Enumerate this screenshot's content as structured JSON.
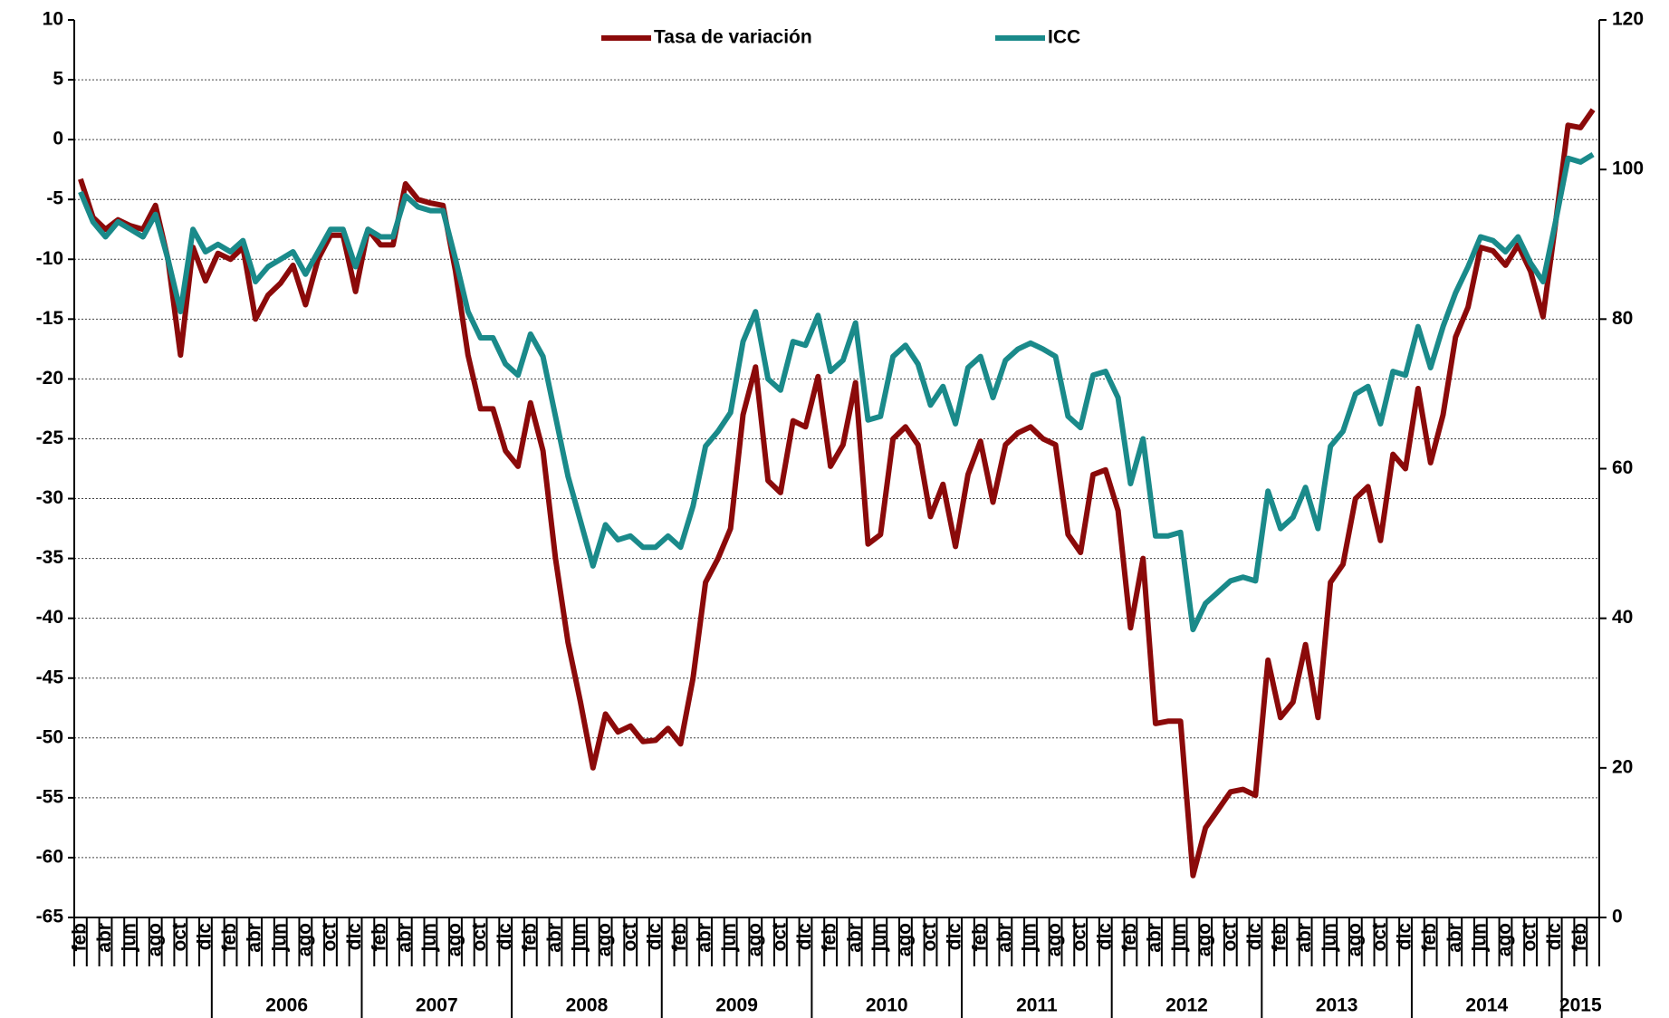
{
  "chart_data": {
    "type": "line",
    "categories": [
      "feb",
      null,
      "abr",
      null,
      "jun",
      null,
      "ago",
      null,
      "oct",
      null,
      "dic",
      null,
      "feb",
      null,
      "abr",
      null,
      "jun",
      null,
      "ago",
      null,
      "oct",
      null,
      "dic",
      null,
      "feb",
      null,
      "abr",
      null,
      "jun",
      null,
      "ago",
      null,
      "oct",
      null,
      "dic",
      null,
      "feb",
      null,
      "abr",
      null,
      "jun",
      null,
      "ago",
      null,
      "oct",
      null,
      "dic",
      null,
      "feb",
      null,
      "abr",
      null,
      "jun",
      null,
      "ago",
      null,
      "oct",
      null,
      "dic",
      null,
      "feb",
      null,
      "abr",
      null,
      "jun",
      null,
      "ago",
      null,
      "oct",
      null,
      "dic",
      null,
      "feb",
      null,
      "abr",
      null,
      "jun",
      null,
      "ago",
      null,
      "oct",
      null,
      "dic",
      null,
      "feb",
      null,
      "abr",
      null,
      "jun",
      null,
      "ago",
      null,
      "oct",
      null,
      "dic",
      null,
      "feb",
      null,
      "abr",
      null,
      "jun",
      null,
      "ago",
      null,
      "oct",
      null,
      "dic",
      null,
      "feb",
      null,
      "abr",
      null,
      "jun",
      null,
      "ago",
      null,
      "oct",
      null,
      "dic",
      null,
      "feb",
      null
    ],
    "years": [
      null,
      "2006",
      "2007",
      "2008",
      "2009",
      "2010",
      "2011",
      "2012",
      "2013",
      "2014",
      "2015"
    ],
    "series": [
      {
        "name": "Tasa de variación",
        "color": "#8b0a0a",
        "values": [
          -3.3,
          -6.5,
          -7.5,
          -6.7,
          -7.2,
          -7.5,
          -5.5,
          -10,
          -18,
          -9,
          -11.8,
          -9.5,
          -10,
          -9,
          -15,
          -13,
          -12,
          -10.5,
          -13.8,
          -10,
          -8,
          -8,
          -12.7,
          -7.5,
          -8.8,
          -8.8,
          -3.7,
          -5,
          -5.3,
          -5.5,
          -11,
          -18,
          -22.5,
          -22.5,
          -26,
          -27.3,
          -22,
          -26,
          -35,
          -42,
          -47,
          -52.5,
          -48,
          -49.5,
          -49,
          -50.3,
          -50.2,
          -49.2,
          -50.5,
          -45,
          -37,
          -35,
          -32.5,
          -23,
          -19,
          -28.5,
          -29.5,
          -23.5,
          -24,
          -19.8,
          -27.3,
          -25.5,
          -20.3,
          -33.8,
          -33,
          -25,
          -24,
          -25.5,
          -31.5,
          -28.8,
          -34,
          -28,
          -25.2,
          -30.3,
          -25.5,
          -24.5,
          -24,
          -25,
          -25.5,
          -33,
          -34.5,
          -28,
          -27.6,
          -31,
          -40.8,
          -35,
          -48.8,
          -48.6,
          -48.6,
          -61.5,
          -57.5,
          -56,
          -54.5,
          -54.3,
          -54.8,
          -43.5,
          -48.3,
          -47,
          -42.2,
          -48.3,
          -37,
          -35.5,
          -30,
          -29,
          -33.5,
          -26.3,
          -27.5,
          -20.8,
          -27,
          -23,
          -16.5,
          -14,
          -9,
          -9.3,
          -10.5,
          -8.8,
          -11,
          -14.8,
          -7,
          1.2,
          1,
          2.5
        ]
      },
      {
        "name": "ICC",
        "color": "#1a8a8a",
        "axis": "y2",
        "values": [
          97,
          93,
          91,
          93,
          92,
          91,
          94,
          88,
          81,
          92,
          89,
          90,
          89,
          90.5,
          85,
          87,
          88,
          89,
          86,
          89,
          92,
          92,
          87,
          92,
          91,
          91,
          96.5,
          95,
          94.5,
          94.5,
          88,
          81,
          77.5,
          77.5,
          74,
          72.5,
          78,
          75,
          67,
          59,
          53,
          47,
          52.5,
          50.5,
          51,
          49.5,
          49.5,
          51,
          49.5,
          55,
          63,
          65,
          67.5,
          77,
          81,
          72,
          70.5,
          77,
          76.5,
          80.5,
          73,
          74.5,
          79.5,
          66.5,
          67,
          75,
          76.5,
          74,
          68.5,
          71,
          66,
          73.5,
          75,
          69.5,
          74.5,
          76,
          76.8,
          76,
          75,
          67,
          65.5,
          72.5,
          73,
          69.5,
          58,
          64,
          51,
          51,
          51.5,
          38.5,
          42,
          43.5,
          45,
          45.5,
          45,
          57,
          52,
          53.5,
          57.5,
          52,
          63,
          65,
          70,
          71,
          66,
          73,
          72.5,
          79,
          73.5,
          79,
          83.5,
          87,
          91,
          90.5,
          89,
          91,
          87.5,
          85,
          93,
          101.5,
          101,
          102
        ]
      }
    ],
    "ylim": [
      -65,
      10
    ],
    "yticks": [
      10,
      5,
      0,
      -5,
      -10,
      -15,
      -20,
      -25,
      -30,
      -35,
      -40,
      -45,
      -50,
      -55,
      -60,
      -65
    ],
    "negative_tick_color": "#ff0000",
    "y2lim": [
      0,
      120
    ],
    "y2ticks": [
      0,
      20,
      40,
      60,
      80,
      100,
      120
    ],
    "grid": true,
    "legend": "top"
  }
}
